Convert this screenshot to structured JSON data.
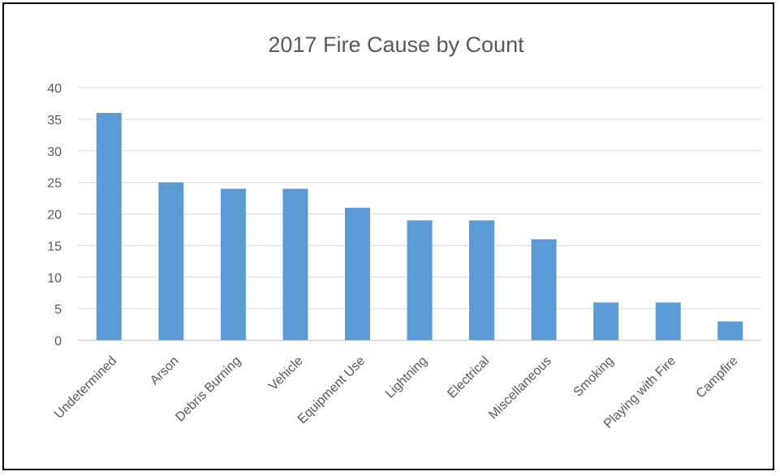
{
  "chart_data": {
    "type": "bar",
    "title": "2017 Fire Cause by Count",
    "xlabel": "",
    "ylabel": "",
    "categories": [
      "Undetermined",
      "Arson",
      "Debris Burning",
      "Vehicle",
      "Equipment Use",
      "Lightning",
      "Electrical",
      "Miscellaneous",
      "Smoking",
      "Playing with Fire",
      "Campfire"
    ],
    "values": [
      36,
      25,
      24,
      24,
      21,
      19,
      19,
      16,
      6,
      6,
      3
    ],
    "ylim": [
      0,
      40
    ],
    "yticks": [
      "0",
      "5",
      "10",
      "15",
      "20",
      "25",
      "30",
      "35",
      "40"
    ],
    "grid": true,
    "legend": "none",
    "bar_color": "#5b9bd5"
  }
}
